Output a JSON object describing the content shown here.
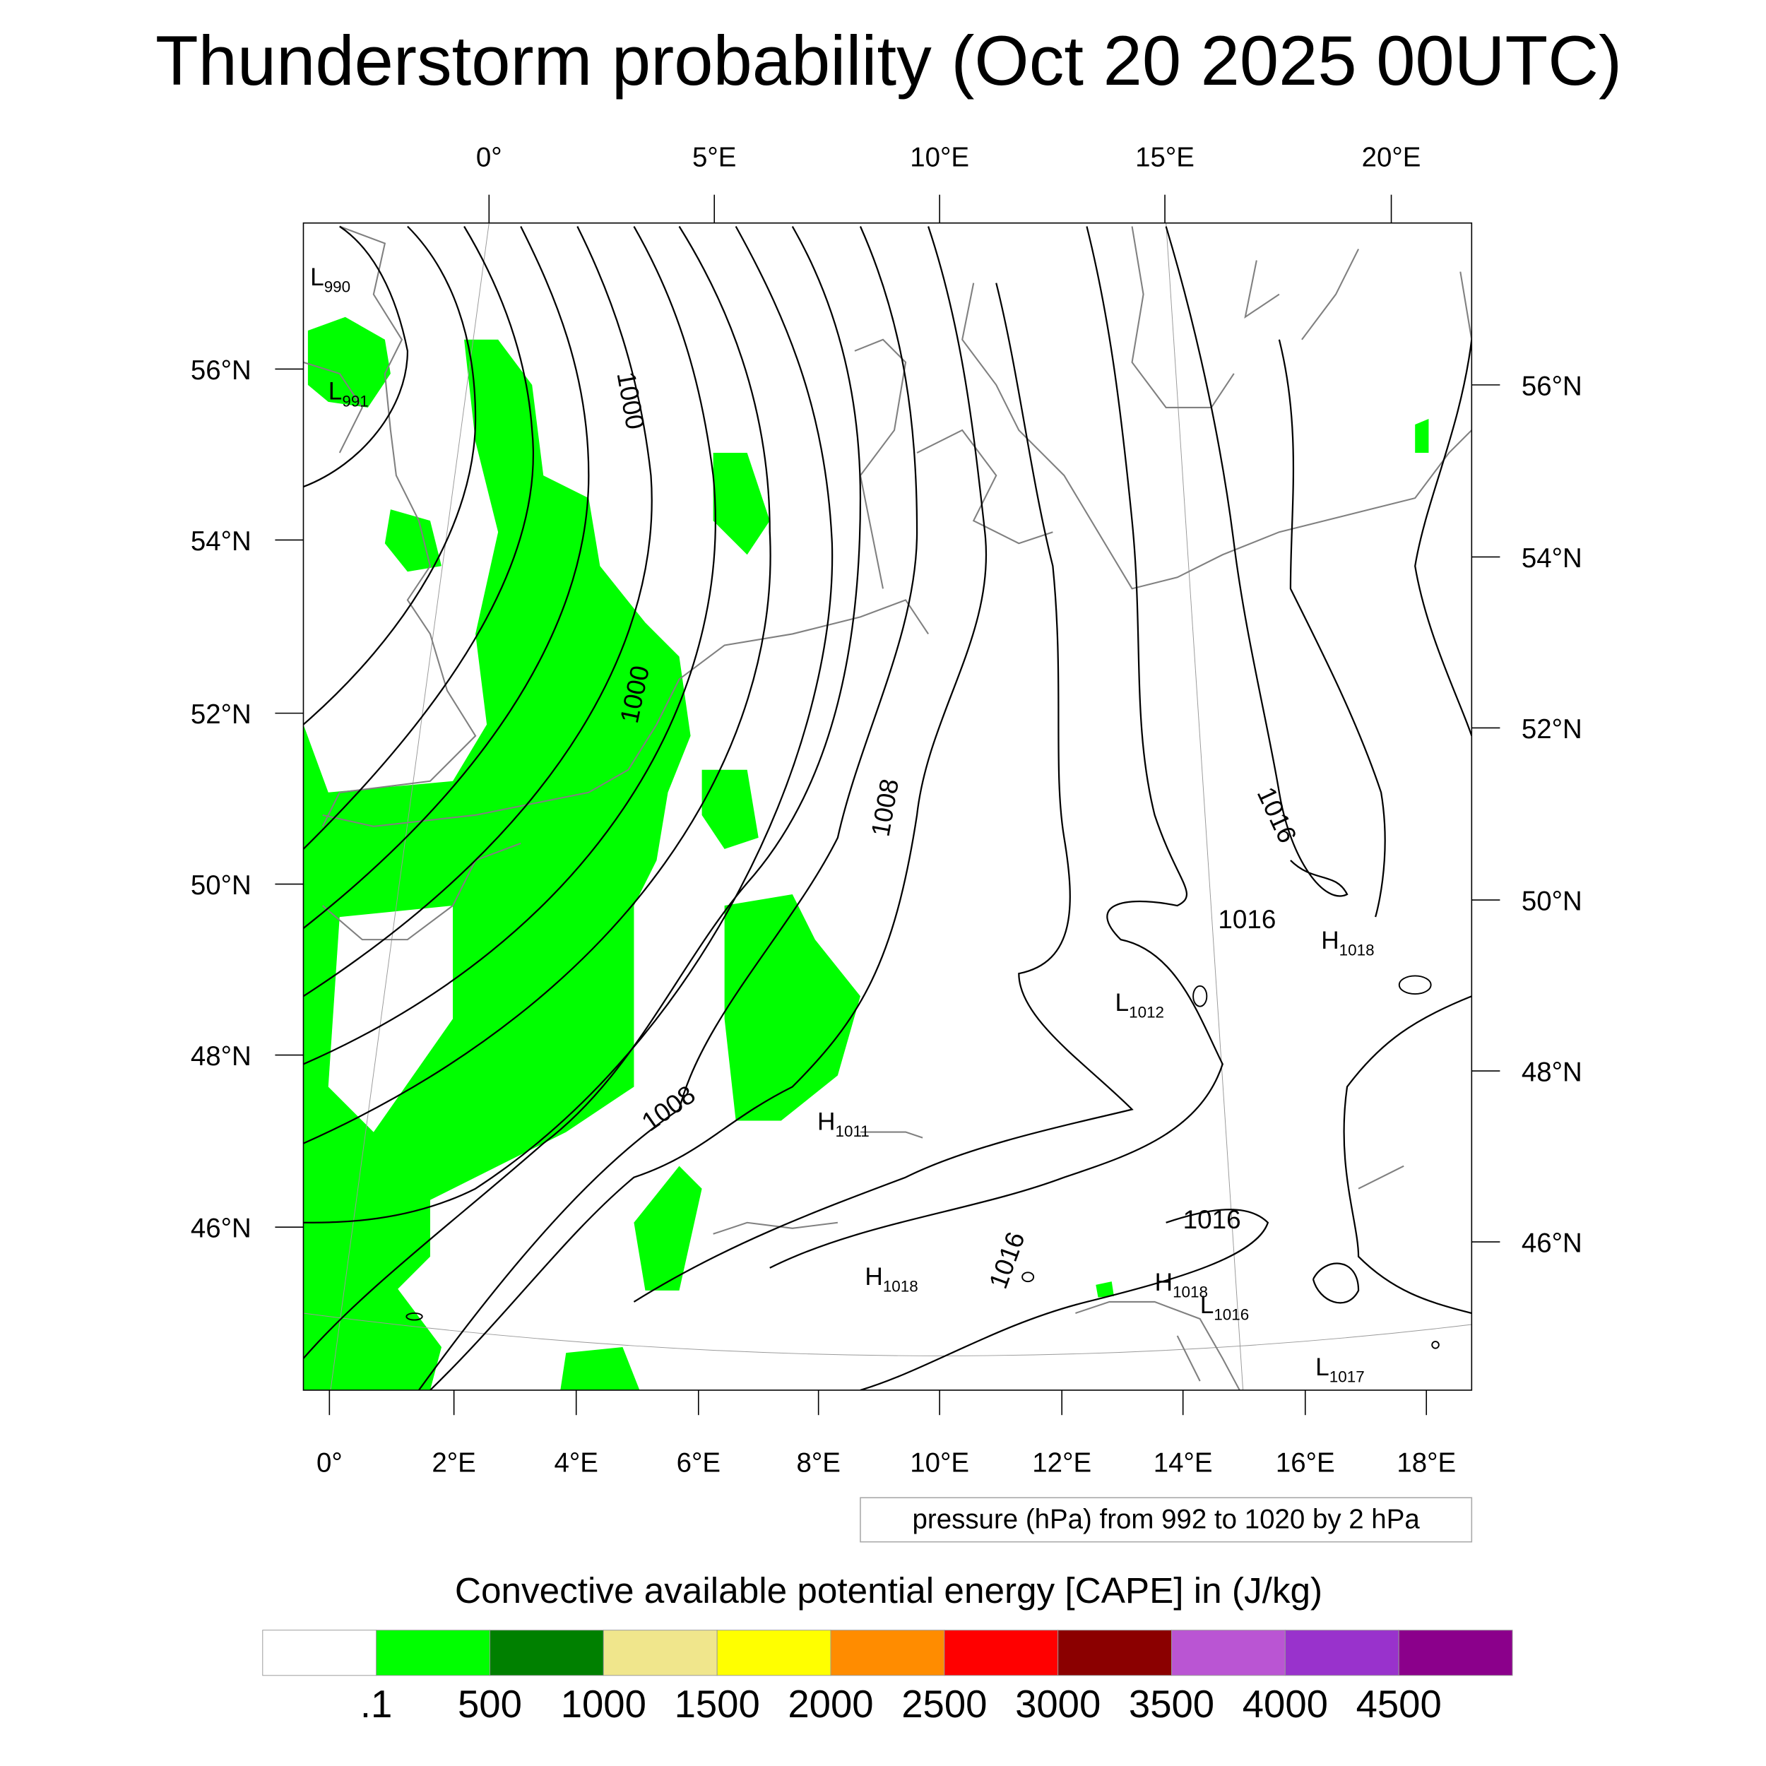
{
  "title": "Thunderstorm probability (Oct 20 2025 00UTC)",
  "top_lon_labels": [
    "0°",
    "5°E",
    "10°E",
    "15°E",
    "20°E"
  ],
  "bottom_lon_labels": [
    "0°",
    "2°E",
    "4°E",
    "6°E",
    "8°E",
    "10°E",
    "12°E",
    "14°E",
    "16°E",
    "18°E"
  ],
  "left_lat_labels": [
    "56°N",
    "54°N",
    "52°N",
    "50°N",
    "48°N",
    "46°N"
  ],
  "right_lat_labels": [
    "56°N",
    "54°N",
    "52°N",
    "50°N",
    "48°N",
    "46°N"
  ],
  "contour_labels": [
    "1000",
    "1000",
    "1008",
    "1008",
    "1016",
    "1016",
    "1016",
    "1016"
  ],
  "pressure_centers": [
    {
      "letter": "L",
      "value": "990"
    },
    {
      "letter": "L",
      "value": "991"
    },
    {
      "letter": "L",
      "value": "1012"
    },
    {
      "letter": "H",
      "value": "1018"
    },
    {
      "letter": "H",
      "value": "1011"
    },
    {
      "letter": "H",
      "value": "1018"
    },
    {
      "letter": "H",
      "value": "1018"
    },
    {
      "letter": "L",
      "value": "1016"
    },
    {
      "letter": "L",
      "value": "1017"
    }
  ],
  "contour_legend": "pressure (hPa) from 992 to 1020 by 2 hPa",
  "colorbar": {
    "title": "Convective available potential energy [CAPE] in (J/kg)",
    "colors": [
      "#ffffff",
      "#00ff00",
      "#008000",
      "#f0e68c",
      "#ffff00",
      "#ff8c00",
      "#ff0000",
      "#8b0000",
      "#ba55d3",
      "#9932cc",
      "#8b008b"
    ],
    "labels": [
      ".1",
      "500",
      "1000",
      "1500",
      "2000",
      "2500",
      "3000",
      "3500",
      "4000",
      "4500"
    ]
  },
  "colors": {
    "cape_fill": "#00ff00",
    "coastline": "#808080",
    "isobar": "#000000"
  }
}
